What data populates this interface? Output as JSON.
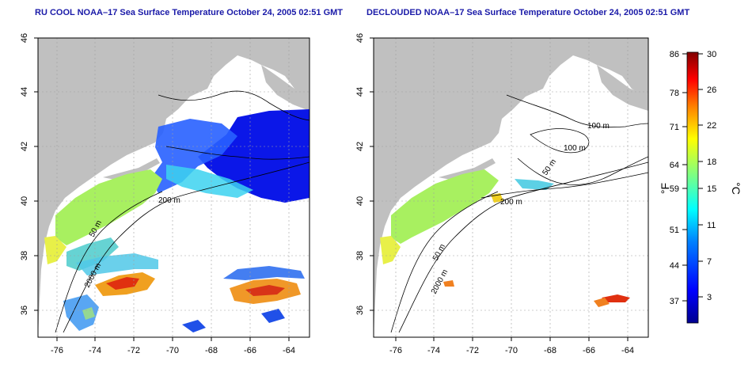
{
  "panels": [
    {
      "id": "left",
      "title": "RU COOL NOAA–17 Sea Surface Temperature October 24, 2005 02:51 GMT",
      "contour_labels": [
        "200 m",
        "50 m",
        "2000 m"
      ]
    },
    {
      "id": "right",
      "title": "DECLOUDED NOAA–17 Sea Surface Temperature October 24, 2005 02:51 GMT",
      "contour_labels": [
        "100 m",
        "100 m",
        "50 m",
        "200 m",
        "50 m",
        "2000 m"
      ]
    }
  ],
  "axes": {
    "x_ticks": [
      "-76",
      "-74",
      "-72",
      "-70",
      "-68",
      "-66",
      "-64"
    ],
    "y_ticks": [
      "36",
      "38",
      "40",
      "42",
      "44",
      "46"
    ],
    "x_range": [
      -77,
      -63
    ],
    "y_range": [
      35,
      46
    ]
  },
  "colorbar": {
    "fahrenheit_ticks": [
      "86",
      "78",
      "71",
      "64",
      "59",
      "51",
      "44",
      "37"
    ],
    "celsius_ticks": [
      "30",
      "26",
      "22",
      "18",
      "15",
      "11",
      "7",
      "3"
    ],
    "f_unit": "°F",
    "c_unit": "°C",
    "colors": [
      "#00008f",
      "#0000ff",
      "#0080ff",
      "#00ffff",
      "#80ff80",
      "#ffff00",
      "#ff8000",
      "#ff0000",
      "#800000"
    ]
  },
  "colors": {
    "land": "#c0c0c0",
    "ocean": "#ffffff",
    "title": "#1a1aa8",
    "grid": "#a0a0a0"
  }
}
